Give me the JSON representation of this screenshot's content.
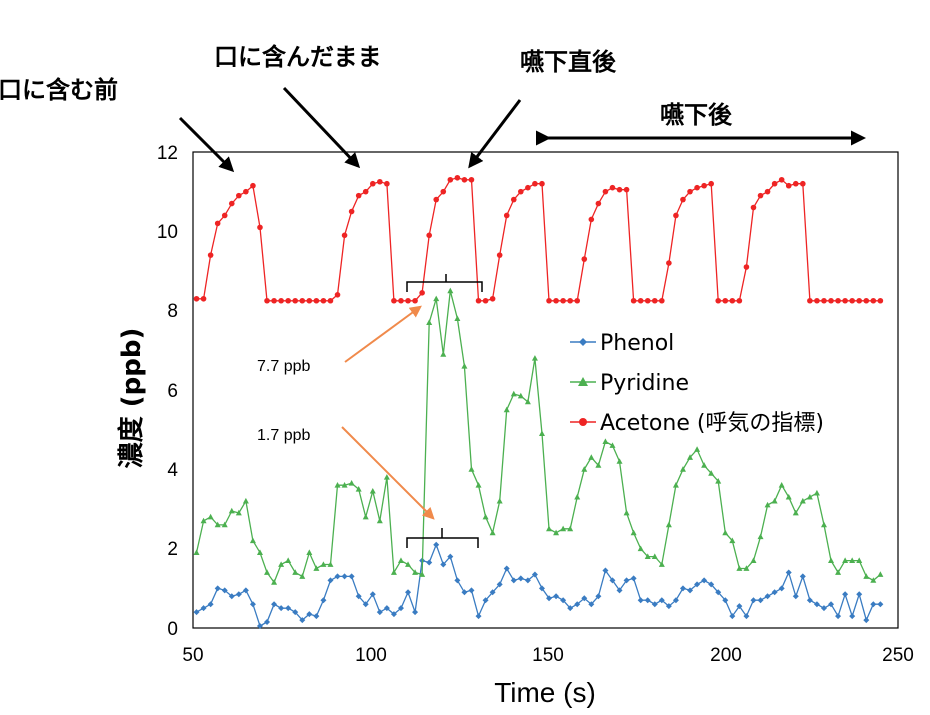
{
  "chart_data": {
    "type": "line",
    "xlabel": "Time (s)",
    "ylabel": "濃度 (ppb)",
    "xlim": [
      50,
      250
    ],
    "ylim": [
      0,
      12
    ],
    "x_ticks": [
      "50",
      "100",
      "150",
      "200",
      "250"
    ],
    "y_ticks": [
      "0",
      "2",
      "4",
      "6",
      "8",
      "10",
      "12"
    ],
    "grid": false,
    "legend_position": "right",
    "series": [
      {
        "name": "Phenol",
        "color": "#3a7cc2",
        "marker": "diamond",
        "points": [
          [
            51,
            0.4
          ],
          [
            53,
            0.5
          ],
          [
            55,
            0.6
          ],
          [
            57,
            1.0
          ],
          [
            59,
            0.95
          ],
          [
            61,
            0.8
          ],
          [
            63,
            0.85
          ],
          [
            65,
            0.95
          ],
          [
            67,
            0.6
          ],
          [
            69,
            0.05
          ],
          [
            71,
            0.15
          ],
          [
            73,
            0.6
          ],
          [
            75,
            0.5
          ],
          [
            77,
            0.5
          ],
          [
            79,
            0.4
          ],
          [
            81,
            0.2
          ],
          [
            83,
            0.35
          ],
          [
            85,
            0.3
          ],
          [
            87,
            0.7
          ],
          [
            89,
            1.2
          ],
          [
            91,
            1.3
          ],
          [
            93,
            1.3
          ],
          [
            95,
            1.3
          ],
          [
            97,
            0.8
          ],
          [
            99,
            0.6
          ],
          [
            101,
            0.85
          ],
          [
            103,
            0.4
          ],
          [
            105,
            0.5
          ],
          [
            107,
            0.35
          ],
          [
            109,
            0.5
          ],
          [
            111,
            0.9
          ],
          [
            113,
            0.4
          ],
          [
            115,
            1.7
          ],
          [
            117,
            1.65
          ],
          [
            119,
            2.1
          ],
          [
            121,
            1.6
          ],
          [
            123,
            1.8
          ],
          [
            125,
            1.2
          ],
          [
            127,
            0.9
          ],
          [
            129,
            0.95
          ],
          [
            131,
            0.3
          ],
          [
            133,
            0.7
          ],
          [
            135,
            0.9
          ],
          [
            137,
            1.1
          ],
          [
            139,
            1.5
          ],
          [
            141,
            1.2
          ],
          [
            143,
            1.25
          ],
          [
            145,
            1.2
          ],
          [
            147,
            1.35
          ],
          [
            149,
            1.0
          ],
          [
            151,
            0.75
          ],
          [
            153,
            0.8
          ],
          [
            155,
            0.7
          ],
          [
            157,
            0.5
          ],
          [
            159,
            0.6
          ],
          [
            161,
            0.75
          ],
          [
            163,
            0.6
          ],
          [
            165,
            0.8
          ],
          [
            167,
            1.45
          ],
          [
            169,
            1.2
          ],
          [
            171,
            0.95
          ],
          [
            173,
            1.2
          ],
          [
            175,
            1.25
          ],
          [
            177,
            0.7
          ],
          [
            179,
            0.7
          ],
          [
            181,
            0.6
          ],
          [
            183,
            0.7
          ],
          [
            185,
            0.55
          ],
          [
            187,
            0.7
          ],
          [
            189,
            1.0
          ],
          [
            191,
            0.95
          ],
          [
            193,
            1.1
          ],
          [
            195,
            1.2
          ],
          [
            197,
            1.1
          ],
          [
            199,
            0.9
          ],
          [
            201,
            0.7
          ],
          [
            203,
            0.3
          ],
          [
            205,
            0.55
          ],
          [
            207,
            0.3
          ],
          [
            209,
            0.7
          ],
          [
            211,
            0.7
          ],
          [
            213,
            0.8
          ],
          [
            215,
            0.9
          ],
          [
            217,
            1.0
          ],
          [
            219,
            1.4
          ],
          [
            221,
            0.8
          ],
          [
            223,
            1.3
          ],
          [
            225,
            0.7
          ],
          [
            227,
            0.6
          ],
          [
            229,
            0.5
          ],
          [
            231,
            0.6
          ],
          [
            233,
            0.3
          ],
          [
            235,
            0.85
          ],
          [
            237,
            0.3
          ],
          [
            239,
            0.85
          ],
          [
            241,
            0.2
          ],
          [
            243,
            0.6
          ],
          [
            245,
            0.6
          ]
        ]
      },
      {
        "name": "Pyridine",
        "color": "#4cb050",
        "marker": "triangle",
        "points": [
          [
            51,
            1.9
          ],
          [
            53,
            2.7
          ],
          [
            55,
            2.8
          ],
          [
            57,
            2.6
          ],
          [
            59,
            2.6
          ],
          [
            61,
            2.95
          ],
          [
            63,
            2.9
          ],
          [
            65,
            3.2
          ],
          [
            67,
            2.2
          ],
          [
            69,
            1.9
          ],
          [
            71,
            1.4
          ],
          [
            73,
            1.15
          ],
          [
            75,
            1.6
          ],
          [
            77,
            1.7
          ],
          [
            79,
            1.4
          ],
          [
            81,
            1.3
          ],
          [
            83,
            1.9
          ],
          [
            85,
            1.5
          ],
          [
            87,
            1.6
          ],
          [
            89,
            1.6
          ],
          [
            91,
            3.6
          ],
          [
            93,
            3.6
          ],
          [
            95,
            3.65
          ],
          [
            97,
            3.5
          ],
          [
            99,
            2.8
          ],
          [
            101,
            3.45
          ],
          [
            103,
            2.7
          ],
          [
            105,
            3.8
          ],
          [
            107,
            1.4
          ],
          [
            109,
            1.7
          ],
          [
            111,
            1.6
          ],
          [
            113,
            1.4
          ],
          [
            115,
            1.35
          ],
          [
            117,
            7.7
          ],
          [
            119,
            8.3
          ],
          [
            121,
            6.9
          ],
          [
            123,
            8.5
          ],
          [
            125,
            7.8
          ],
          [
            127,
            6.6
          ],
          [
            129,
            4.0
          ],
          [
            131,
            3.6
          ],
          [
            133,
            2.8
          ],
          [
            135,
            2.4
          ],
          [
            137,
            3.2
          ],
          [
            139,
            5.5
          ],
          [
            141,
            5.9
          ],
          [
            143,
            5.85
          ],
          [
            145,
            5.7
          ],
          [
            147,
            6.8
          ],
          [
            149,
            4.9
          ],
          [
            151,
            2.5
          ],
          [
            153,
            2.4
          ],
          [
            155,
            2.5
          ],
          [
            157,
            2.5
          ],
          [
            159,
            3.3
          ],
          [
            161,
            4.0
          ],
          [
            163,
            4.3
          ],
          [
            165,
            4.1
          ],
          [
            167,
            4.7
          ],
          [
            169,
            4.6
          ],
          [
            171,
            4.2
          ],
          [
            173,
            2.9
          ],
          [
            175,
            2.4
          ],
          [
            177,
            2.0
          ],
          [
            179,
            1.8
          ],
          [
            181,
            1.8
          ],
          [
            183,
            1.6
          ],
          [
            185,
            2.6
          ],
          [
            187,
            3.6
          ],
          [
            189,
            4.0
          ],
          [
            191,
            4.3
          ],
          [
            193,
            4.5
          ],
          [
            195,
            4.1
          ],
          [
            197,
            3.9
          ],
          [
            199,
            3.7
          ],
          [
            201,
            2.4
          ],
          [
            203,
            2.2
          ],
          [
            205,
            1.5
          ],
          [
            207,
            1.5
          ],
          [
            209,
            1.7
          ],
          [
            211,
            2.3
          ],
          [
            213,
            3.1
          ],
          [
            215,
            3.2
          ],
          [
            217,
            3.6
          ],
          [
            219,
            3.3
          ],
          [
            221,
            2.9
          ],
          [
            223,
            3.2
          ],
          [
            225,
            3.3
          ],
          [
            227,
            3.4
          ],
          [
            229,
            2.6
          ],
          [
            231,
            1.7
          ],
          [
            233,
            1.4
          ],
          [
            235,
            1.7
          ],
          [
            237,
            1.7
          ],
          [
            239,
            1.7
          ],
          [
            241,
            1.3
          ],
          [
            243,
            1.2
          ],
          [
            245,
            1.35
          ]
        ]
      },
      {
        "name": "Acetone (呼気の指標)",
        "color": "#ee2424",
        "marker": "circle",
        "points": [
          [
            51,
            8.3
          ],
          [
            53,
            8.3
          ],
          [
            55,
            9.4
          ],
          [
            57,
            10.2
          ],
          [
            59,
            10.4
          ],
          [
            61,
            10.7
          ],
          [
            63,
            10.9
          ],
          [
            65,
            11.0
          ],
          [
            67,
            11.15
          ],
          [
            69,
            10.1
          ],
          [
            71,
            8.25
          ],
          [
            73,
            8.25
          ],
          [
            75,
            8.25
          ],
          [
            77,
            8.25
          ],
          [
            79,
            8.25
          ],
          [
            81,
            8.25
          ],
          [
            83,
            8.25
          ],
          [
            85,
            8.25
          ],
          [
            87,
            8.25
          ],
          [
            89,
            8.25
          ],
          [
            91,
            8.4
          ],
          [
            93,
            9.9
          ],
          [
            95,
            10.5
          ],
          [
            97,
            10.9
          ],
          [
            99,
            11.0
          ],
          [
            101,
            11.2
          ],
          [
            103,
            11.25
          ],
          [
            105,
            11.2
          ],
          [
            107,
            8.25
          ],
          [
            109,
            8.25
          ],
          [
            111,
            8.25
          ],
          [
            113,
            8.25
          ],
          [
            115,
            8.45
          ],
          [
            117,
            9.9
          ],
          [
            119,
            10.8
          ],
          [
            121,
            11.0
          ],
          [
            123,
            11.3
          ],
          [
            125,
            11.35
          ],
          [
            127,
            11.3
          ],
          [
            129,
            11.3
          ],
          [
            131,
            8.25
          ],
          [
            133,
            8.25
          ],
          [
            135,
            8.3
          ],
          [
            137,
            9.4
          ],
          [
            139,
            10.4
          ],
          [
            141,
            10.8
          ],
          [
            143,
            11.0
          ],
          [
            145,
            11.1
          ],
          [
            147,
            11.2
          ],
          [
            149,
            11.2
          ],
          [
            151,
            8.25
          ],
          [
            153,
            8.25
          ],
          [
            155,
            8.25
          ],
          [
            157,
            8.25
          ],
          [
            159,
            8.25
          ],
          [
            161,
            9.3
          ],
          [
            163,
            10.3
          ],
          [
            165,
            10.7
          ],
          [
            167,
            11.0
          ],
          [
            169,
            11.1
          ],
          [
            171,
            11.05
          ],
          [
            173,
            11.05
          ],
          [
            175,
            8.25
          ],
          [
            177,
            8.25
          ],
          [
            179,
            8.25
          ],
          [
            181,
            8.25
          ],
          [
            183,
            8.25
          ],
          [
            185,
            9.2
          ],
          [
            187,
            10.4
          ],
          [
            189,
            10.8
          ],
          [
            191,
            11.0
          ],
          [
            193,
            11.1
          ],
          [
            195,
            11.15
          ],
          [
            197,
            11.2
          ],
          [
            199,
            8.25
          ],
          [
            201,
            8.25
          ],
          [
            203,
            8.25
          ],
          [
            205,
            8.25
          ],
          [
            207,
            9.1
          ],
          [
            209,
            10.6
          ],
          [
            211,
            10.9
          ],
          [
            213,
            11.0
          ],
          [
            215,
            11.2
          ],
          [
            217,
            11.3
          ],
          [
            219,
            11.15
          ],
          [
            221,
            11.2
          ],
          [
            223,
            11.2
          ],
          [
            225,
            8.25
          ],
          [
            227,
            8.25
          ],
          [
            229,
            8.25
          ],
          [
            231,
            8.25
          ],
          [
            233,
            8.25
          ],
          [
            235,
            8.25
          ],
          [
            237,
            8.25
          ],
          [
            239,
            8.25
          ],
          [
            241,
            8.25
          ],
          [
            243,
            8.25
          ],
          [
            245,
            8.25
          ]
        ]
      }
    ],
    "annotations": {
      "phases": [
        "口に含む前",
        "口に含んだまま",
        "嚥下直後",
        "嚥下後"
      ],
      "peak_labels": [
        "7.7 ppb",
        "1.7 ppb"
      ],
      "arrow_color": "#f08a4b"
    }
  }
}
